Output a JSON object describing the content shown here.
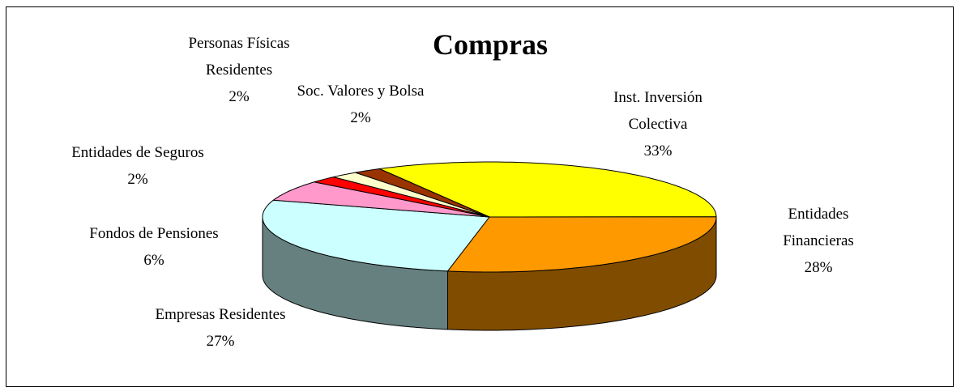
{
  "chart_data": {
    "type": "pie",
    "title": "Compras",
    "categories": [
      "Inst. Inversión Colectiva",
      "Entidades Financieras",
      "Empresas Residentes",
      "Fondos de Pensiones",
      "Entidades de Seguros",
      "Soc. Valores y Bolsa",
      "Personas Físicas Residentes"
    ],
    "values": [
      33,
      28,
      27,
      6,
      2,
      2,
      2
    ],
    "value_labels": [
      "33%",
      "28%",
      "27%",
      "6%",
      "2%",
      "2%",
      "2%"
    ],
    "colors": [
      "#ffff00",
      "#ff9900",
      "#ccffff",
      "#ff99cc",
      "#ff0000",
      "#ffffcc",
      "#993300"
    ]
  }
}
